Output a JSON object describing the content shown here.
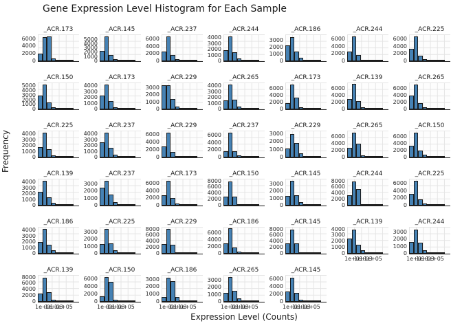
{
  "figure": {
    "title": "Gene Expression Level Histogram for Each Sample",
    "xlabel": "Expression Level (Counts)",
    "ylabel": "Frequency"
  },
  "style": {
    "bar_fill": "#4682b4",
    "bar_edge": "#1a1a1a",
    "grid_color": "#e4e4e4",
    "spine_color": "#262626",
    "text_color": "#1a1a1a"
  },
  "chart_data": {
    "type": "bar",
    "subtype": "histogram-small-multiples",
    "title": "Gene Expression Level Histogram for Each Sample",
    "xlabel": "Expression Level (Counts)",
    "ylabel": "Frequency",
    "grid": {
      "rows": 6,
      "cols": 7,
      "total_subplots": 40,
      "gridlines": true
    },
    "x_ticklabels": [
      "1e+01",
      "1e+03",
      "1e+05"
    ],
    "subplots": [
      {
        "row": 0,
        "col": 0,
        "title": "_ACR.173",
        "ylim": 7200,
        "y_ticks": [
          6000,
          4000,
          2000,
          0
        ],
        "counts": [
          2000,
          6500,
          6700,
          800,
          150,
          60,
          25,
          10
        ]
      },
      {
        "row": 0,
        "col": 1,
        "title": "_ACR.145",
        "ylim": 6200,
        "y_ticks": [
          5000,
          4000,
          3000,
          2000,
          1000,
          0
        ],
        "counts": [
          2400,
          5800,
          1400,
          500,
          150,
          60,
          25,
          10
        ]
      },
      {
        "row": 0,
        "col": 2,
        "title": "_ACR.237",
        "ylim": 7400,
        "y_ticks": [
          6000,
          4000,
          2000,
          0
        ],
        "counts": [
          2700,
          6800,
          1700,
          500,
          130,
          50,
          25,
          10
        ]
      },
      {
        "row": 0,
        "col": 3,
        "title": "_ACR.244",
        "ylim": 4600,
        "y_ticks": [
          4000,
          3000,
          2000,
          1000,
          0
        ],
        "counts": [
          1900,
          4200,
          1500,
          450,
          130,
          50,
          25,
          10
        ]
      },
      {
        "row": 0,
        "col": 4,
        "title": "_ACR.186",
        "ylim": 3900,
        "y_ticks": [
          3000,
          2000,
          1000,
          0
        ],
        "counts": [
          2300,
          3500,
          1400,
          500,
          150,
          60,
          25,
          10
        ]
      },
      {
        "row": 0,
        "col": 5,
        "title": "_ACR.244",
        "ylim": 7400,
        "y_ticks": [
          6000,
          4000,
          2000,
          0
        ],
        "counts": [
          2600,
          6900,
          1800,
          400,
          120,
          50,
          25,
          10
        ]
      },
      {
        "row": 0,
        "col": 6,
        "title": "_ACR.225",
        "ylim": 7400,
        "y_ticks": [
          6000,
          4000,
          2000,
          0
        ],
        "counts": [
          3400,
          6900,
          1500,
          500,
          130,
          50,
          25,
          10
        ]
      },
      {
        "row": 1,
        "col": 0,
        "title": "_ACR.150",
        "ylim": 5800,
        "y_ticks": [
          5000,
          4000,
          3000,
          2000,
          1000,
          0
        ],
        "counts": [
          3000,
          5300,
          1500,
          400,
          120,
          50,
          25,
          10
        ]
      },
      {
        "row": 1,
        "col": 1,
        "title": "_ACR.173",
        "ylim": 4600,
        "y_ticks": [
          4000,
          3000,
          2000,
          1000,
          0
        ],
        "counts": [
          2400,
          4200,
          1400,
          400,
          120,
          50,
          25,
          10
        ]
      },
      {
        "row": 1,
        "col": 2,
        "title": "_ACR.229",
        "ylim": 3800,
        "y_ticks": [
          3000,
          2000,
          1000,
          0
        ],
        "counts": [
          3400,
          3400,
          1500,
          400,
          110,
          50,
          25,
          10
        ]
      },
      {
        "row": 1,
        "col": 3,
        "title": "_ACR.265",
        "ylim": 4600,
        "y_ticks": [
          4000,
          3000,
          2000,
          1000,
          0
        ],
        "counts": [
          1500,
          4200,
          1600,
          500,
          150,
          60,
          25,
          10
        ]
      },
      {
        "row": 1,
        "col": 4,
        "title": "_ACR.173",
        "ylim": 7800,
        "y_ticks": [
          6000,
          4000,
          2000,
          0
        ],
        "counts": [
          1700,
          7200,
          3300,
          500,
          130,
          50,
          25,
          10
        ]
      },
      {
        "row": 1,
        "col": 5,
        "title": "_ACR.139",
        "ylim": 7800,
        "y_ticks": [
          6000,
          4000,
          2000,
          0
        ],
        "counts": [
          2900,
          7300,
          2400,
          500,
          130,
          50,
          25,
          10
        ]
      },
      {
        "row": 1,
        "col": 6,
        "title": "_ACR.265",
        "ylim": 7800,
        "y_ticks": [
          6000,
          4000,
          2000,
          0
        ],
        "counts": [
          4000,
          7200,
          1800,
          600,
          150,
          60,
          25,
          10
        ]
      },
      {
        "row": 2,
        "col": 0,
        "title": "_ACR.225",
        "ylim": 4600,
        "y_ticks": [
          4000,
          3000,
          2000,
          1000,
          0
        ],
        "counts": [
          1800,
          4300,
          1400,
          400,
          120,
          50,
          25,
          10
        ]
      },
      {
        "row": 2,
        "col": 1,
        "title": "_ACR.237",
        "ylim": 4600,
        "y_ticks": [
          4000,
          3000,
          2000,
          1000,
          0
        ],
        "counts": [
          2600,
          4200,
          1600,
          500,
          150,
          60,
          25,
          10
        ]
      },
      {
        "row": 2,
        "col": 2,
        "title": "_ACR.229",
        "ylim": 7000,
        "y_ticks": [
          6000,
          4000,
          2000,
          0
        ],
        "counts": [
          2900,
          6400,
          1500,
          400,
          110,
          50,
          25,
          10
        ]
      },
      {
        "row": 2,
        "col": 3,
        "title": "_ACR.237",
        "ylim": 7400,
        "y_ticks": [
          6000,
          4000,
          2000,
          0
        ],
        "counts": [
          1700,
          6800,
          1800,
          500,
          130,
          50,
          25,
          10
        ]
      },
      {
        "row": 2,
        "col": 4,
        "title": "_ACR.229",
        "ylim": 3400,
        "y_ticks": [
          3000,
          2000,
          1000,
          0
        ],
        "counts": [
          1100,
          3000,
          1800,
          500,
          150,
          60,
          25,
          10
        ]
      },
      {
        "row": 2,
        "col": 5,
        "title": "_ACR.265",
        "ylim": 7800,
        "y_ticks": [
          6000,
          4000,
          2000,
          0
        ],
        "counts": [
          2800,
          7200,
          4000,
          500,
          130,
          50,
          25,
          10
        ]
      },
      {
        "row": 2,
        "col": 6,
        "title": "_ACR.150",
        "ylim": 7800,
        "y_ticks": [
          6000,
          4000,
          2000,
          0
        ],
        "counts": [
          3300,
          7200,
          1900,
          700,
          200,
          60,
          25,
          10
        ]
      },
      {
        "row": 3,
        "col": 0,
        "title": "_ACR.139",
        "ylim": 4600,
        "y_ticks": [
          4000,
          3000,
          2000,
          1000,
          0
        ],
        "counts": [
          2300,
          4300,
          1400,
          500,
          150,
          60,
          25,
          10
        ]
      },
      {
        "row": 3,
        "col": 1,
        "title": "_ACR.237",
        "ylim": 3800,
        "y_ticks": [
          3000,
          2000,
          1000,
          0
        ],
        "counts": [
          2500,
          3500,
          1600,
          500,
          150,
          60,
          25,
          10
        ]
      },
      {
        "row": 3,
        "col": 2,
        "title": "_ACR.173",
        "ylim": 7400,
        "y_ticks": [
          6000,
          4000,
          2000,
          0
        ],
        "counts": [
          2900,
          6900,
          2100,
          500,
          130,
          50,
          25,
          10
        ]
      },
      {
        "row": 3,
        "col": 3,
        "title": "_ACR.150",
        "ylim": 8800,
        "y_ticks": [
          8000,
          6000,
          4000,
          2000,
          0
        ],
        "counts": [
          2900,
          8000,
          3000,
          500,
          150,
          60,
          25,
          10
        ]
      },
      {
        "row": 3,
        "col": 4,
        "title": "_ACR.145",
        "ylim": 3800,
        "y_ticks": [
          3000,
          2000,
          1000,
          0
        ],
        "counts": [
          1400,
          3500,
          1500,
          500,
          150,
          60,
          25,
          10
        ]
      },
      {
        "row": 3,
        "col": 5,
        "title": "_ACR.244",
        "ylim": 8800,
        "y_ticks": [
          8000,
          6000,
          4000,
          2000,
          0
        ],
        "counts": [
          3400,
          8000,
          5400,
          500,
          150,
          60,
          25,
          10
        ]
      },
      {
        "row": 3,
        "col": 6,
        "title": "_ACR.225",
        "ylim": 7400,
        "y_ticks": [
          6000,
          4000,
          2000,
          0
        ],
        "counts": [
          3300,
          6800,
          1800,
          600,
          150,
          60,
          25,
          10
        ]
      },
      {
        "row": 4,
        "col": 0,
        "title": "_ACR.186",
        "ylim": 4600,
        "y_ticks": [
          4000,
          3000,
          2000,
          1000,
          0
        ],
        "counts": [
          2000,
          4300,
          1500,
          600,
          200,
          60,
          25,
          10
        ]
      },
      {
        "row": 4,
        "col": 1,
        "title": "_ACR.225",
        "ylim": 3800,
        "y_ticks": [
          3000,
          2000,
          1000,
          0
        ],
        "counts": [
          1400,
          3500,
          1500,
          500,
          200,
          60,
          25,
          10
        ]
      },
      {
        "row": 4,
        "col": 2,
        "title": "_ACR.229",
        "ylim": 8800,
        "y_ticks": [
          8000,
          6000,
          4000,
          2000,
          0
        ],
        "counts": [
          3200,
          8100,
          2900,
          400,
          120,
          50,
          25,
          10
        ]
      },
      {
        "row": 4,
        "col": 3,
        "title": "_ACR.186",
        "ylim": 7800,
        "y_ticks": [
          6000,
          4000,
          2000,
          0
        ],
        "counts": [
          3000,
          7300,
          1700,
          500,
          150,
          60,
          25,
          10
        ]
      },
      {
        "row": 4,
        "col": 4,
        "title": "_ACR.145",
        "ylim": 8800,
        "y_ticks": [
          8000,
          6000,
          4000,
          2000,
          0
        ],
        "counts": [
          3300,
          7900,
          3300,
          400,
          120,
          50,
          25,
          10
        ]
      },
      {
        "row": 4,
        "col": 5,
        "title": "_ACR.139",
        "ylim": 4400,
        "y_ticks": [
          4000,
          3000,
          2000,
          1000,
          0
        ],
        "counts": [
          2500,
          4000,
          1500,
          600,
          200,
          80,
          30,
          10
        ],
        "x_ticks": true
      },
      {
        "row": 4,
        "col": 6,
        "title": "_ACR.244",
        "ylim": 3800,
        "y_ticks": [
          3000,
          2000,
          1000,
          0
        ],
        "counts": [
          1700,
          3400,
          1600,
          500,
          150,
          60,
          25,
          10
        ],
        "x_ticks": true
      },
      {
        "row": 5,
        "col": 0,
        "title": "_ACR.139",
        "ylim": 8800,
        "y_ticks": [
          8000,
          6000,
          4000,
          2000,
          0
        ],
        "counts": [
          2600,
          7900,
          3100,
          600,
          150,
          60,
          25,
          10
        ],
        "x_ticks": true
      },
      {
        "row": 5,
        "col": 1,
        "title": "_ACR.150",
        "ylim": 7000,
        "y_ticks": [
          6000,
          4000,
          2000,
          0
        ],
        "counts": [
          1500,
          6400,
          5200,
          600,
          150,
          60,
          25,
          10
        ],
        "x_ticks": true
      },
      {
        "row": 5,
        "col": 2,
        "title": "_ACR.186",
        "ylim": 3600,
        "y_ticks": [
          3000,
          2000,
          1000,
          0
        ],
        "counts": [
          600,
          3200,
          2800,
          600,
          150,
          60,
          25,
          10
        ],
        "x_ticks": true
      },
      {
        "row": 5,
        "col": 3,
        "title": "_ACR.265",
        "ylim": 3800,
        "y_ticks": [
          3000,
          2000,
          1000,
          0
        ],
        "counts": [
          1300,
          3500,
          1600,
          500,
          150,
          60,
          25,
          10
        ],
        "x_ticks": true
      },
      {
        "row": 5,
        "col": 4,
        "title": "_ACR.145",
        "ylim": 7000,
        "y_ticks": [
          6000,
          4000,
          2000,
          0
        ],
        "counts": [
          2700,
          6300,
          2300,
          500,
          150,
          60,
          25,
          10
        ],
        "x_ticks": true
      }
    ]
  }
}
